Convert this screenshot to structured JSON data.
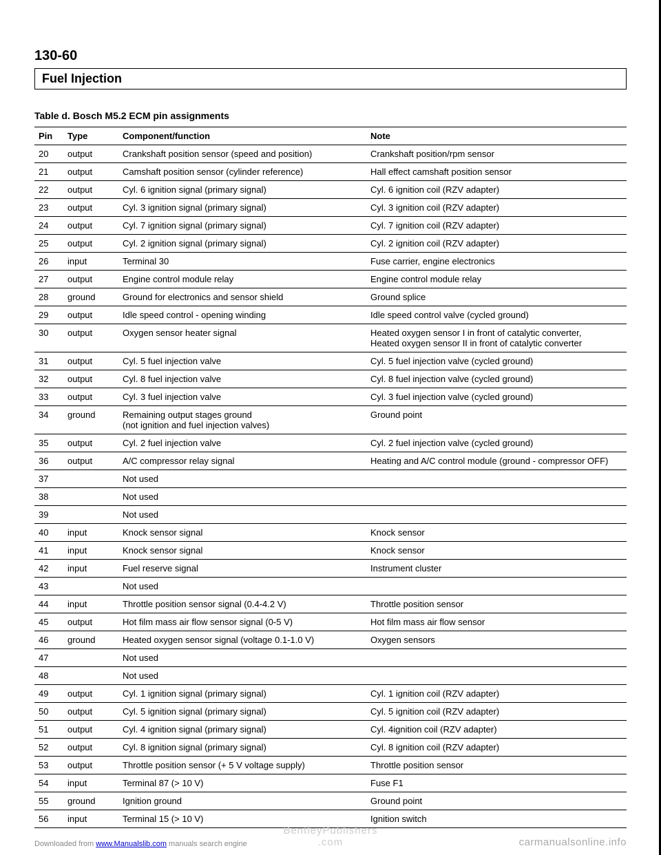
{
  "page_number": "130-60",
  "section_title": "Fuel Injection",
  "table_caption": "Table d. Bosch M5.2 ECM pin assignments",
  "columns": [
    "Pin",
    "Type",
    "Component/function",
    "Note"
  ],
  "rows": [
    [
      "20",
      "output",
      "Crankshaft position sensor (speed and position)",
      "Crankshaft position/rpm sensor"
    ],
    [
      "21",
      "output",
      "Camshaft position sensor (cylinder reference)",
      "Hall effect camshaft position sensor"
    ],
    [
      "22",
      "output",
      "Cyl. 6 ignition signal (primary signal)",
      "Cyl. 6 ignition coil (RZV adapter)"
    ],
    [
      "23",
      "output",
      "Cyl. 3 ignition signal (primary signal)",
      "Cyl. 3 ignition coil (RZV adapter)"
    ],
    [
      "24",
      "output",
      "Cyl. 7 ignition signal (primary signal)",
      "Cyl. 7 ignition coil (RZV adapter)"
    ],
    [
      "25",
      "output",
      "Cyl. 2 ignition signal (primary signal)",
      "Cyl. 2 ignition coil (RZV adapter)"
    ],
    [
      "26",
      "input",
      "Terminal 30",
      "Fuse carrier, engine electronics"
    ],
    [
      "27",
      "output",
      "Engine control module relay",
      "Engine control module relay"
    ],
    [
      "28",
      "ground",
      "Ground for electronics and sensor shield",
      "Ground splice"
    ],
    [
      "29",
      "output",
      "Idle speed control - opening winding",
      "Idle speed control valve (cycled ground)"
    ],
    [
      "30",
      "output",
      "Oxygen sensor heater signal",
      "Heated oxygen sensor I in front of catalytic converter,\nHeated oxygen sensor II in front of catalytic converter"
    ],
    [
      "31",
      "output",
      "Cyl. 5 fuel injection valve",
      "Cyl. 5 fuel injection valve (cycled ground)"
    ],
    [
      "32",
      "output",
      "Cyl. 8 fuel injection valve",
      "Cyl. 8 fuel injection valve (cycled ground)"
    ],
    [
      "33",
      "output",
      "Cyl. 3 fuel injection valve",
      "Cyl. 3 fuel injection valve (cycled ground)"
    ],
    [
      "34",
      "ground",
      "Remaining output stages ground\n(not ignition and fuel injection valves)",
      "Ground point"
    ],
    [
      "35",
      "output",
      "Cyl. 2 fuel injection valve",
      "Cyl. 2 fuel injection valve (cycled ground)"
    ],
    [
      "36",
      "output",
      "A/C compressor relay signal",
      "Heating and A/C control module (ground - compressor OFF)"
    ],
    [
      "37",
      "",
      "Not used",
      ""
    ],
    [
      "38",
      "",
      "Not used",
      ""
    ],
    [
      "39",
      "",
      "Not used",
      ""
    ],
    [
      "40",
      "input",
      "Knock sensor signal",
      "Knock sensor"
    ],
    [
      "41",
      "input",
      "Knock sensor signal",
      "Knock sensor"
    ],
    [
      "42",
      "input",
      "Fuel reserve signal",
      "Instrument cluster"
    ],
    [
      "43",
      "",
      "Not used",
      ""
    ],
    [
      "44",
      "input",
      "Throttle position sensor signal (0.4-4.2 V)",
      "Throttle position sensor"
    ],
    [
      "45",
      "output",
      "Hot film mass air flow sensor signal (0-5 V)",
      "Hot film mass air flow sensor"
    ],
    [
      "46",
      "ground",
      "Heated oxygen sensor signal (voltage 0.1-1.0 V)",
      "Oxygen sensors"
    ],
    [
      "47",
      "",
      "Not used",
      ""
    ],
    [
      "48",
      "",
      "Not used",
      ""
    ],
    [
      "49",
      "output",
      "Cyl. 1 ignition signal (primary signal)",
      "Cyl. 1 ignition coil (RZV adapter)"
    ],
    [
      "50",
      "output",
      "Cyl. 5 ignition signal (primary signal)",
      "Cyl. 5 ignition coil (RZV adapter)"
    ],
    [
      "51",
      "output",
      "Cyl. 4 ignition signal (primary signal)",
      "Cyl. 4ignition coil (RZV adapter)"
    ],
    [
      "52",
      "output",
      "Cyl. 8 ignition signal (primary signal)",
      "Cyl. 8 ignition coil (RZV adapter)"
    ],
    [
      "53",
      "output",
      "Throttle position sensor (+ 5 V voltage supply)",
      "Throttle position sensor"
    ],
    [
      "54",
      "input",
      "Terminal 87 (> 10 V)",
      "Fuse F1"
    ],
    [
      "55",
      "ground",
      "Ignition ground",
      "Ground point"
    ],
    [
      "56",
      "input",
      "Terminal 15 (> 10 V)",
      "Ignition switch"
    ]
  ],
  "footer": {
    "left_prefix": "Downloaded from ",
    "left_link": "www.Manualslib.com",
    "left_suffix": " manuals search engine",
    "center_top": "BentleyPublishers",
    "center_bottom": ".com",
    "right": "carmanualsonline.info"
  }
}
